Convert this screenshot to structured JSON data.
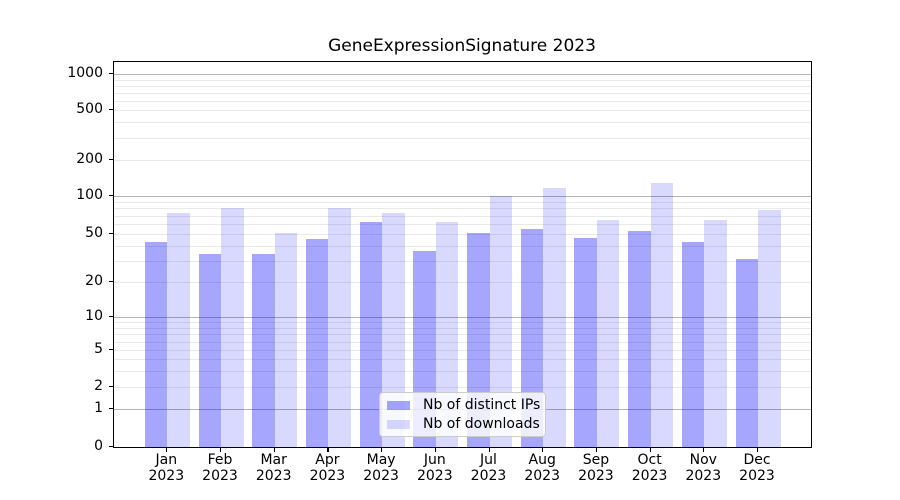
{
  "chart_data": {
    "type": "bar",
    "title": "GeneExpressionSignature 2023",
    "x": [
      "Jan",
      "Feb",
      "Mar",
      "Apr",
      "May",
      "Jun",
      "Jul",
      "Aug",
      "Sep",
      "Oct",
      "Nov",
      "Dec"
    ],
    "x_year": "2023",
    "series": [
      {
        "name": "Nb of distinct IPs",
        "color": "rgba(0,0,255,0.35)",
        "values": [
          43,
          34,
          34,
          45,
          62,
          36,
          51,
          55,
          46,
          53,
          43,
          31
        ]
      },
      {
        "name": "Nb of downloads",
        "color": "rgba(0,0,255,0.15)",
        "values": [
          74,
          80,
          51,
          80,
          74,
          62,
          100,
          118,
          64,
          128,
          64,
          78
        ]
      }
    ],
    "yticks": [
      0,
      1,
      2,
      5,
      10,
      20,
      50,
      100,
      200,
      500,
      1000
    ],
    "ytick_labels": [
      "0",
      "1",
      "2",
      "5",
      "10",
      "20",
      "50",
      "100",
      "200",
      "500",
      "1000"
    ],
    "ylim": [
      0,
      1000
    ],
    "yscale": "log-like with 0 baseline (ticks 0,1,2,5,10,20,50,100,200,500,1000)",
    "grid": "horizontal major and minor gridlines",
    "legend_position": "lower center",
    "xlabel": "",
    "ylabel": ""
  },
  "colors": {
    "bar_distinct_ips": "rgba(0,0,255,0.35)",
    "bar_downloads": "rgba(0,0,255,0.15)",
    "grid_major": "#b4b4b4",
    "grid_minor": "#e9e9e9",
    "axis": "#000000",
    "legend_border": "#cccccc"
  }
}
